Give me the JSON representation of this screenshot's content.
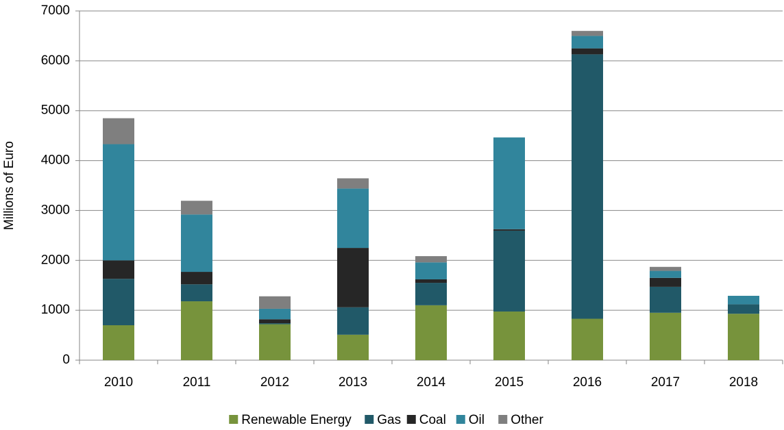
{
  "chart_data": {
    "type": "stacked_bar",
    "y_label": "Millions of Euro",
    "categories": [
      "2010",
      "2011",
      "2012",
      "2013",
      "2014",
      "2015",
      "2016",
      "2017",
      "2018"
    ],
    "series": [
      {
        "name": "Renewable Energy",
        "color": "#77933c",
        "values": [
          700,
          1180,
          720,
          510,
          1100,
          975,
          830,
          950,
          930
        ]
      },
      {
        "name": "Gas",
        "color": "#215968",
        "values": [
          930,
          340,
          20,
          550,
          450,
          1620,
          5300,
          520,
          190
        ]
      },
      {
        "name": "Coal",
        "color": "#262626",
        "values": [
          370,
          250,
          80,
          1190,
          70,
          30,
          120,
          180,
          0
        ]
      },
      {
        "name": "Oil",
        "color": "#31859c",
        "values": [
          2330,
          1150,
          210,
          1190,
          340,
          1840,
          250,
          140,
          170
        ]
      },
      {
        "name": "Other",
        "color": "#7f7f7f",
        "values": [
          520,
          275,
          250,
          205,
          125,
          0,
          100,
          80,
          0
        ]
      }
    ],
    "ylim": [
      0,
      7000
    ],
    "yticks": [
      0,
      1000,
      2000,
      3000,
      4000,
      5000,
      6000,
      7000
    ],
    "grid": true,
    "legend": "bottom"
  }
}
